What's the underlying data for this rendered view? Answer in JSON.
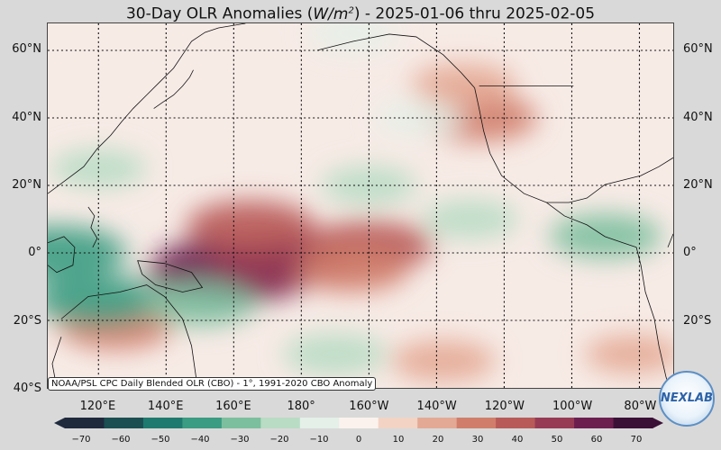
{
  "title": {
    "prefix": "30-Day OLR Anomalies (",
    "unit_base": "W/m",
    "unit_exp": "2",
    "suffix": ") - 2025-01-06 thru 2025-02-05"
  },
  "lat_labels": [
    "60°N",
    "40°N",
    "20°N",
    "0°",
    "20°S",
    "40°S"
  ],
  "lon_labels": [
    "120°E",
    "140°E",
    "160°E",
    "180°",
    "160°W",
    "140°W",
    "120°W",
    "100°W",
    "80°W"
  ],
  "credit": "NOAA/PSL CPC Daily Blended OLR (CBO) - 1°, 1991-2020 CBO Anomaly",
  "colorbar": {
    "ticks": [
      "−70",
      "−60",
      "−50",
      "−40",
      "−30",
      "−20",
      "−10",
      "0",
      "10",
      "20",
      "30",
      "40",
      "50",
      "60",
      "70"
    ],
    "min": -70,
    "max": 70,
    "colors": [
      "#1f2a3d",
      "#1b4f52",
      "#1e7a6e",
      "#3a9c82",
      "#7cbf9e",
      "#b8dcc4",
      "#e4f0e8",
      "#fbf2ee",
      "#f2d3c4",
      "#e4a994",
      "#d07e6b",
      "#b85a58",
      "#973b55",
      "#6c1f4f",
      "#3b1037"
    ]
  },
  "map": {
    "lat_range": [
      -40,
      68
    ],
    "lon_range": [
      105,
      290
    ],
    "anomalies": [
      {
        "lat": -5,
        "lon": 160,
        "value": 60
      },
      {
        "lat": -2,
        "lon": 175,
        "value": 45
      },
      {
        "lat": 8,
        "lon": 165,
        "value": 35
      },
      {
        "lat": 2,
        "lon": 200,
        "value": 35
      },
      {
        "lat": -5,
        "lon": 195,
        "value": 25
      },
      {
        "lat": 40,
        "lon": 232,
        "value": 30
      },
      {
        "lat": 50,
        "lon": 228,
        "value": 20
      },
      {
        "lat": -22,
        "lon": 125,
        "value": 25
      },
      {
        "lat": -32,
        "lon": 222,
        "value": 20
      },
      {
        "lat": -30,
        "lon": 278,
        "value": 15
      },
      {
        "lat": 0,
        "lon": 108,
        "value": -40
      },
      {
        "lat": -14,
        "lon": 120,
        "value": -35
      },
      {
        "lat": -15,
        "lon": 150,
        "value": -25
      },
      {
        "lat": -30,
        "lon": 190,
        "value": -20
      },
      {
        "lat": 20,
        "lon": 200,
        "value": -15
      },
      {
        "lat": 10,
        "lon": 230,
        "value": -15
      },
      {
        "lat": 5,
        "lon": 270,
        "value": -25
      },
      {
        "lat": 25,
        "lon": 120,
        "value": -15
      },
      {
        "lat": 40,
        "lon": 215,
        "value": -10
      },
      {
        "lat": 65,
        "lon": 195,
        "value": -10
      }
    ]
  },
  "logo_text": "NEXLAB"
}
